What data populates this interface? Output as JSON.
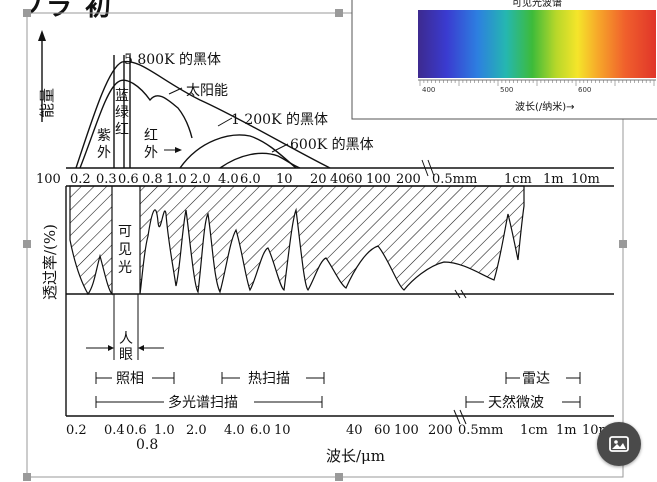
{
  "heading_fragment": "ブラ 初",
  "inset": {
    "title": "可见光波谱",
    "ticks": [
      "400",
      "500",
      "600"
    ],
    "xlabel": "波长(/纳米)→"
  },
  "energy_panel": {
    "ylabel": "能量",
    "curves": [
      "5 800K 的黑体",
      "太阳能",
      "1 200K 的黑体",
      "600K 的黑体"
    ],
    "band_blue_green_red": [
      "蓝",
      "绿",
      "红"
    ],
    "band_uv": [
      "紫",
      "外"
    ],
    "band_ir": [
      "红",
      "外"
    ]
  },
  "top_axis": {
    "ticks": [
      "100",
      "0.2",
      "0.3",
      "0.6",
      "0.8",
      "1.0",
      "2.0",
      "4.0",
      "6.0",
      "10",
      "20",
      "40",
      "60",
      "100",
      "200",
      "0.5mm",
      "1cm",
      "1m",
      "10m"
    ]
  },
  "transmission_panel": {
    "ylabel": "透过率/(%)",
    "visible_label": [
      "可",
      "见",
      "光"
    ]
  },
  "annotations": {
    "eye": [
      "人",
      "眼"
    ],
    "photo": "照相",
    "thermal_scan": "热扫描",
    "radar": "雷达",
    "multispectral": "多光谱扫描",
    "microwave": "天然微波"
  },
  "bottom_axis": {
    "ticks": [
      "0.2",
      "0.4",
      "0.6",
      "1.0",
      "2.0",
      "4.0",
      "6.0",
      "10",
      "40",
      "60",
      "100",
      "200",
      "0.5mm",
      "1cm",
      "1m",
      "10m"
    ],
    "sub_tick": "0.8",
    "xlabel": "波长/μm"
  },
  "colors": {
    "image_button": "#4a4a4a",
    "selection_frame": "#9a9a9a"
  },
  "icons": {
    "image_button_icon": "image-icon"
  }
}
